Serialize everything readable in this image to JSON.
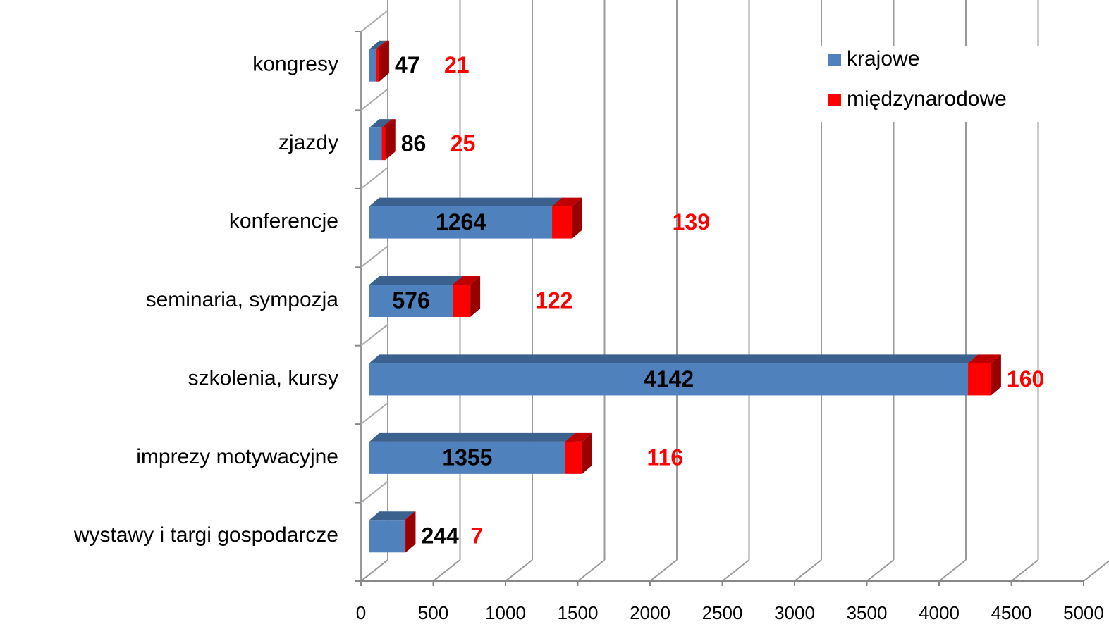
{
  "chart_data": {
    "type": "bar",
    "stacked": true,
    "categories": [
      "kongresy",
      "zjazdy",
      "konferencje",
      "seminaria, sympozja",
      "szkolenia, kursy",
      "imprezy motywacyjne",
      "wystawy i targi gospodarcze"
    ],
    "series": [
      {
        "name": "krajowe",
        "color": "#4f81bd",
        "label_color": "#000000",
        "values": [
          47,
          86,
          1264,
          576,
          4142,
          1355,
          244
        ]
      },
      {
        "name": "międzynarodowe",
        "color": "#ff0000",
        "label_color": "#ff0000",
        "values": [
          21,
          25,
          139,
          122,
          160,
          116,
          7
        ]
      }
    ],
    "xlim": [
      0,
      5000
    ],
    "xticks": [
      0,
      500,
      1000,
      1500,
      2000,
      2500,
      3000,
      3500,
      4000,
      4500,
      5000
    ],
    "grid": true,
    "legend": "upper right"
  }
}
